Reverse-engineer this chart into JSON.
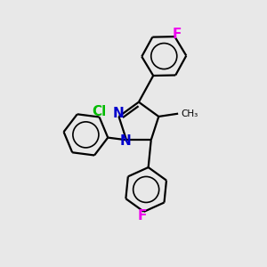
{
  "background_color": "#e8e8e8",
  "bond_color": "#000000",
  "N_color": "#0000cc",
  "Cl_color": "#00bb00",
  "F_color": "#ee00ee",
  "line_width": 1.6,
  "font_size": 10,
  "fig_size": [
    3.0,
    3.0
  ],
  "dpi": 100,
  "xlim": [
    0,
    10
  ],
  "ylim": [
    0,
    10
  ]
}
